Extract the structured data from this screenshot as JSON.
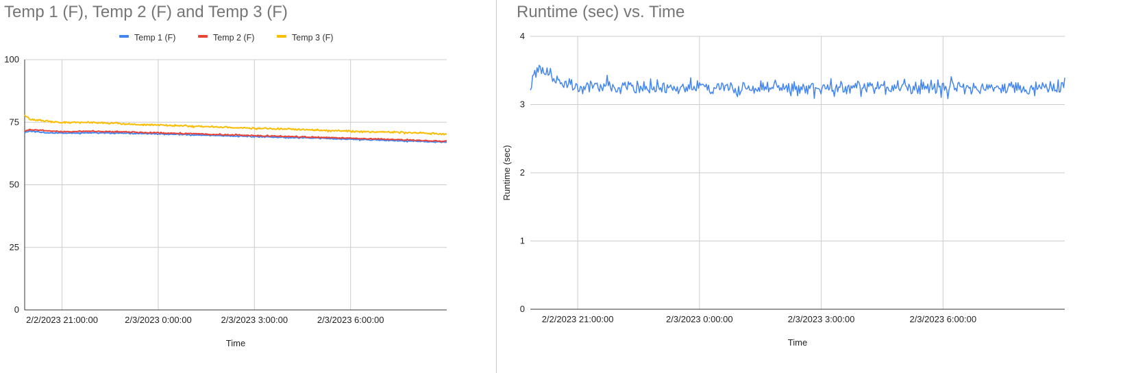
{
  "charts": [
    {
      "title": "Temp 1 (F), Temp 2 (F) and Temp 3 (F)",
      "xlabel": "Time",
      "ylabel": "",
      "yticks": [
        "0",
        "25",
        "50",
        "75",
        "100"
      ],
      "xticks": [
        "2/2/2023 21:00:00",
        "2/3/2023 0:00:00",
        "2/3/2023 3:00:00",
        "2/3/2023 6:00:00"
      ],
      "legend": [
        "Temp 1 (F)",
        "Temp 2 (F)",
        "Temp 3 (F)"
      ]
    },
    {
      "title": "Runtime (sec) vs. Time",
      "xlabel": "Time",
      "ylabel": "Runtime (sec)",
      "yticks": [
        "0",
        "1",
        "2",
        "3",
        "4"
      ],
      "xticks": [
        "2/2/2023 21:00:00",
        "2/3/2023 0:00:00",
        "2/3/2023 3:00:00",
        "2/3/2023 6:00:00"
      ]
    }
  ],
  "chart_data": [
    {
      "type": "line",
      "title": "Temp 1 (F), Temp 2 (F) and Temp 3 (F)",
      "xlabel": "Time",
      "ylabel": "",
      "xlim": [
        "2/2/2023 19:50:00",
        "2/3/2023 9:00:00"
      ],
      "ylim": [
        0,
        100
      ],
      "grid": true,
      "legend_position": "top",
      "x": [
        "2/2/2023 19:50:00",
        "2/2/2023 20:00:00",
        "2/2/2023 20:30:00",
        "2/2/2023 21:00:00",
        "2/2/2023 22:00:00",
        "2/2/2023 23:00:00",
        "2/3/2023 0:00:00",
        "2/3/2023 1:00:00",
        "2/3/2023 2:00:00",
        "2/3/2023 3:00:00",
        "2/3/2023 4:00:00",
        "2/3/2023 5:00:00",
        "2/3/2023 6:00:00",
        "2/3/2023 7:00:00",
        "2/3/2023 8:00:00",
        "2/3/2023 9:00:00"
      ],
      "series": [
        {
          "name": "Temp 1 (F)",
          "color": "#4285f4",
          "values": [
            71,
            71.5,
            70.8,
            70.6,
            70.8,
            70.6,
            70.3,
            70,
            69.6,
            69.3,
            68.9,
            68.6,
            68.2,
            67.8,
            67.4,
            67
          ]
        },
        {
          "name": "Temp 2 (F)",
          "color": "#ea4335",
          "values": [
            71.5,
            72,
            71.6,
            71.2,
            71.4,
            71.1,
            70.8,
            70.4,
            70,
            69.7,
            69.3,
            69,
            68.6,
            68.2,
            67.8,
            67.4
          ]
        },
        {
          "name": "Temp 3 (F)",
          "color": "#fbbc04",
          "values": [
            78,
            76,
            75.5,
            74.8,
            74.9,
            74.3,
            73.9,
            73.4,
            73,
            72.6,
            72.2,
            71.8,
            71.4,
            71.1,
            70.8,
            70.3
          ]
        }
      ]
    },
    {
      "type": "line",
      "title": "Runtime (sec) vs. Time",
      "xlabel": "Time",
      "ylabel": "Runtime (sec)",
      "xlim": [
        "2/2/2023 19:50:00",
        "2/3/2023 9:00:00"
      ],
      "ylim": [
        0,
        4
      ],
      "grid": true,
      "legend_position": "none",
      "x": [
        "2/2/2023 19:50:00",
        "2/2/2023 20:00:00",
        "2/2/2023 21:00:00",
        "2/2/2023 22:00:00",
        "2/2/2023 23:00:00",
        "2/3/2023 0:00:00",
        "2/3/2023 1:00:00",
        "2/3/2023 2:00:00",
        "2/3/2023 3:00:00",
        "2/3/2023 4:00:00",
        "2/3/2023 5:00:00",
        "2/3/2023 6:00:00",
        "2/3/2023 7:00:00",
        "2/3/2023 8:00:00",
        "2/3/2023 9:00:00"
      ],
      "series": [
        {
          "name": "Runtime (sec)",
          "color": "#4285f4",
          "values": [
            3.3,
            3.5,
            3.25,
            3.27,
            3.24,
            3.25,
            3.23,
            3.26,
            3.24,
            3.25,
            3.23,
            3.26,
            3.24,
            3.25,
            3.24
          ]
        }
      ]
    }
  ]
}
